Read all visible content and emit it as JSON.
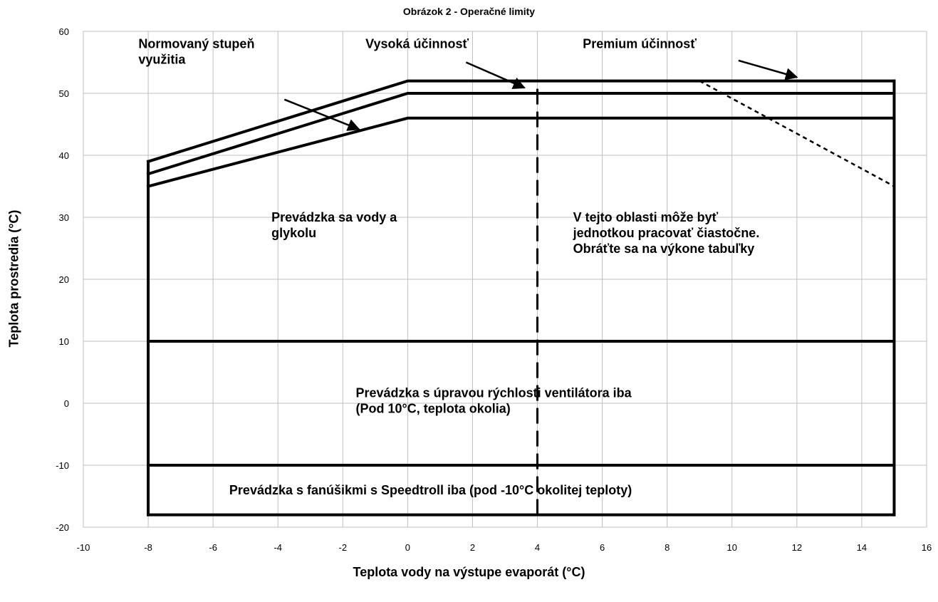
{
  "chart_data": {
    "type": "line",
    "title": "Obrázok 2 - Operačné limity",
    "xlabel": "Teplota vody na výstupe evaporát (°C)",
    "ylabel": "Teplota prostredia (°C)",
    "xlim": [
      -10,
      16
    ],
    "ylim": [
      -20,
      60
    ],
    "xticks": [
      -10,
      -8,
      -6,
      -4,
      -2,
      0,
      2,
      4,
      6,
      8,
      10,
      12,
      14,
      16
    ],
    "yticks": [
      -20,
      -10,
      0,
      10,
      20,
      30,
      40,
      50,
      60
    ],
    "grid": true,
    "series": [
      {
        "name": "Normovaný stupeň využitia",
        "x": [
          -8,
          0,
          15
        ],
        "y": [
          35,
          46,
          46
        ],
        "style": "solid"
      },
      {
        "name": "Vysoká účinnosť",
        "x": [
          -8,
          0,
          15
        ],
        "y": [
          37,
          50,
          50
        ],
        "style": "solid"
      },
      {
        "name": "Premium účinnosť",
        "x": [
          -8,
          0,
          15
        ],
        "y": [
          39,
          52,
          52
        ],
        "style": "solid"
      },
      {
        "x": [
          9,
          15
        ],
        "y": [
          52,
          35
        ],
        "style": "dashed"
      },
      {
        "x": [
          -8,
          -8
        ],
        "y": [
          -18,
          39
        ],
        "style": "solid"
      },
      {
        "x": [
          15,
          15
        ],
        "y": [
          -18,
          52
        ],
        "style": "solid"
      },
      {
        "x": [
          -8,
          15
        ],
        "y": [
          -18,
          -18
        ],
        "style": "solid"
      },
      {
        "x": [
          -8,
          15
        ],
        "y": [
          -10,
          -10
        ],
        "style": "solid"
      },
      {
        "x": [
          -8,
          15
        ],
        "y": [
          10,
          10
        ],
        "style": "solid"
      },
      {
        "x": [
          4,
          4
        ],
        "y": [
          -18,
          52
        ],
        "style": "longdash"
      }
    ],
    "annotations": [
      {
        "lines": [
          "Normovaný stupeň",
          "využitia"
        ],
        "x": -8.3,
        "y": 57.3,
        "anchor": "start",
        "arrow_from": [
          -3.8,
          49
        ],
        "arrow_to": [
          -1.5,
          44.2
        ]
      },
      {
        "lines": [
          "Vysoká účinnosť"
        ],
        "x": -1.3,
        "y": 57.3,
        "anchor": "start",
        "arrow_from": [
          1.8,
          55
        ],
        "arrow_to": [
          3.6,
          50.9
        ]
      },
      {
        "lines": [
          "Premium účinnosť"
        ],
        "x": 5.4,
        "y": 57.3,
        "anchor": "start",
        "arrow_from": [
          10.2,
          55.3
        ],
        "arrow_to": [
          12.0,
          52.6
        ]
      },
      {
        "lines": [
          "Prevádzka sa vody a",
          "glykolu"
        ],
        "x": -4.2,
        "y": 29.3,
        "anchor": "start"
      },
      {
        "lines": [
          "V tejto oblasti môže byť",
          "jednotkou pracovať čiastočne.",
          "Obráťte sa na výkone tabuľky"
        ],
        "x": 5.1,
        "y": 29.3,
        "anchor": "start"
      },
      {
        "lines": [
          "Prevádzka s úpravou rýchlosti ventilátora iba",
          "(Pod 10°C, teplota okolia)"
        ],
        "x": -1.6,
        "y": 1.0,
        "anchor": "start"
      },
      {
        "lines": [
          "Prevádzka s fanúšikmi s Speedtroll iba (pod -10°C okolitej teploty)"
        ],
        "x": -5.5,
        "y": -14.7,
        "anchor": "start"
      }
    ]
  }
}
